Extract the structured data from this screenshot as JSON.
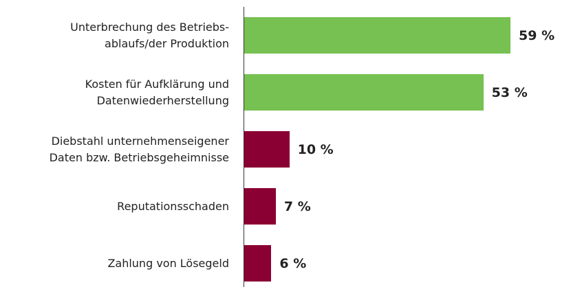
{
  "chart_data": {
    "type": "bar",
    "orientation": "horizontal",
    "categories": [
      "Unterbrechung des Betriebs-\nablaufs/der Produktion",
      "Kosten für Aufklärung und\nDatenwiederherstellung",
      "Diebstahl unternehmenseigener\nDaten bzw. Betriebsgeheimnisse",
      "Reputationsschaden",
      "Zahlung von Lösegeld"
    ],
    "values": [
      59,
      53,
      10,
      7,
      6
    ],
    "value_labels": [
      "59 %",
      "53 %",
      "10 %",
      "7 %",
      "6 %"
    ],
    "colors": [
      "#76c152",
      "#76c152",
      "#8b0033",
      "#8b0033",
      "#8b0033"
    ]
  }
}
